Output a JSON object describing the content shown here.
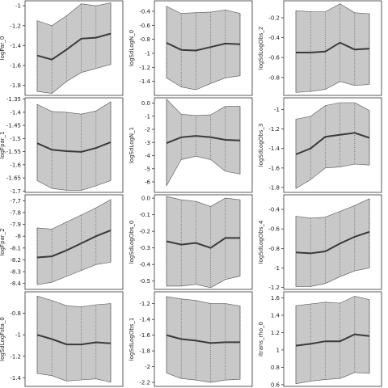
{
  "chart_data": [
    {
      "type": "area",
      "ylabel": "logPar_0",
      "ylim": [
        -1.9,
        -0.95
      ],
      "yticks": [
        -1.0,
        -1.2,
        -1.4,
        -1.6,
        -1.8
      ],
      "x": [
        0,
        1,
        2,
        3,
        4,
        5
      ],
      "mean": [
        -1.5,
        -1.54,
        -1.44,
        -1.33,
        -1.32,
        -1.28
      ],
      "lower": [
        -1.86,
        -1.88,
        -1.76,
        -1.67,
        -1.63,
        -1.59
      ],
      "upper": [
        -1.15,
        -1.2,
        -1.1,
        -0.98,
        -1.0,
        -0.97
      ]
    },
    {
      "type": "area",
      "ylabel": "logSdLogN_0",
      "ylim": [
        -1.6,
        -0.25
      ],
      "yticks": [
        -0.4,
        -0.6,
        -0.8,
        -1.0,
        -1.2,
        -1.4
      ],
      "x": [
        0,
        1,
        2,
        3,
        4,
        5
      ],
      "mean": [
        -0.85,
        -0.95,
        -0.96,
        -0.91,
        -0.86,
        -0.87
      ],
      "lower": [
        -1.35,
        -1.48,
        -1.52,
        -1.43,
        -1.35,
        -1.32
      ],
      "upper": [
        -0.33,
        -0.43,
        -0.42,
        -0.41,
        -0.38,
        -0.43
      ]
    },
    {
      "type": "area",
      "ylabel": "logSdLogObs_2",
      "ylim": [
        -0.98,
        -0.03
      ],
      "yticks": [
        -0.2,
        -0.4,
        -0.6,
        -0.8
      ],
      "x": [
        0,
        1,
        2,
        3,
        4,
        5
      ],
      "mean": [
        -0.55,
        -0.55,
        -0.54,
        -0.45,
        -0.52,
        -0.51
      ],
      "lower": [
        -0.95,
        -0.94,
        -0.92,
        -0.84,
        -0.88,
        -0.87
      ],
      "upper": [
        -0.13,
        -0.14,
        -0.14,
        -0.06,
        -0.15,
        -0.16
      ]
    },
    {
      "type": "area",
      "ylabel": "logFpar_1",
      "ylim": [
        -1.705,
        -1.345
      ],
      "yticks": [
        -1.35,
        -1.4,
        -1.45,
        -1.5,
        -1.55,
        -1.6,
        -1.65,
        -1.7
      ],
      "x": [
        0,
        1,
        2,
        3,
        4,
        5
      ],
      "mean": [
        -1.518,
        -1.543,
        -1.548,
        -1.551,
        -1.536,
        -1.514
      ],
      "lower": [
        -1.66,
        -1.69,
        -1.697,
        -1.697,
        -1.68,
        -1.66
      ],
      "upper": [
        -1.37,
        -1.397,
        -1.4,
        -1.407,
        -1.395,
        -1.36
      ]
    },
    {
      "type": "area",
      "ylabel": "logSdLogN_1",
      "ylim": [
        -6.8,
        0.4
      ],
      "yticks": [
        0,
        -1,
        -2,
        -3,
        -4,
        -5,
        -6
      ],
      "x": [
        0,
        1,
        2,
        3,
        4,
        5
      ],
      "mean": [
        -3.05,
        -2.6,
        -2.5,
        -2.6,
        -2.8,
        -2.85
      ],
      "lower": [
        -6.3,
        -4.3,
        -4.05,
        -4.3,
        -5.2,
        -5.4
      ],
      "upper": [
        0.3,
        -0.85,
        -0.95,
        -0.9,
        -0.25,
        -0.25
      ]
    },
    {
      "type": "area",
      "ylabel": "logSdLogObs_3",
      "ylim": [
        -1.85,
        -0.88
      ],
      "yticks": [
        -1.0,
        -1.2,
        -1.4,
        -1.6,
        -1.8
      ],
      "x": [
        0,
        1,
        2,
        3,
        4,
        5
      ],
      "mean": [
        -1.46,
        -1.4,
        -1.28,
        -1.26,
        -1.24,
        -1.29
      ],
      "lower": [
        -1.81,
        -1.72,
        -1.6,
        -1.59,
        -1.56,
        -1.57
      ],
      "upper": [
        -1.1,
        -1.07,
        -0.96,
        -0.93,
        -0.93,
        -1.01
      ]
    },
    {
      "type": "area",
      "ylabel": "logFpar_2",
      "ylim": [
        -8.45,
        -7.65
      ],
      "yticks": [
        -7.7,
        -7.8,
        -7.9,
        -8.0,
        -8.1,
        -8.2,
        -8.3,
        -8.4
      ],
      "x": [
        0,
        1,
        2,
        3,
        4,
        5
      ],
      "mean": [
        -8.18,
        -8.17,
        -8.12,
        -8.06,
        -8.0,
        -7.95
      ],
      "lower": [
        -8.41,
        -8.39,
        -8.34,
        -8.29,
        -8.24,
        -8.22
      ],
      "upper": [
        -7.93,
        -7.94,
        -7.88,
        -7.82,
        -7.76,
        -7.69
      ]
    },
    {
      "type": "area",
      "ylabel": "logSdLogObs_0",
      "ylim": [
        -0.55,
        0.02
      ],
      "yticks": [
        0.0,
        -0.1,
        -0.2,
        -0.3,
        -0.4,
        -0.5
      ],
      "x": [
        0,
        1,
        2,
        3,
        4,
        5
      ],
      "mean": [
        -0.26,
        -0.28,
        -0.27,
        -0.3,
        -0.24,
        -0.24
      ],
      "lower": [
        -0.53,
        -0.53,
        -0.52,
        -0.54,
        -0.49,
        -0.47
      ],
      "upper": [
        0.01,
        -0.01,
        -0.02,
        -0.05,
        -0.0,
        -0.01
      ]
    },
    {
      "type": "area",
      "ylabel": "logSdLogObs_4",
      "ylim": [
        -1.22,
        -0.25
      ],
      "yticks": [
        -0.4,
        -0.6,
        -0.8,
        -1.0,
        -1.2
      ],
      "x": [
        0,
        1,
        2,
        3,
        4,
        5
      ],
      "mean": [
        -0.84,
        -0.85,
        -0.83,
        -0.75,
        -0.68,
        -0.63
      ],
      "lower": [
        -1.19,
        -1.19,
        -1.16,
        -1.09,
        -1.03,
        -1.0
      ],
      "upper": [
        -0.47,
        -0.49,
        -0.48,
        -0.42,
        -0.36,
        -0.29
      ]
    },
    {
      "type": "area",
      "ylabel": "logSdLogFsta_0",
      "ylim": [
        -1.48,
        -0.6
      ],
      "yticks": [
        -0.8,
        -1.0,
        -1.2,
        -1.4
      ],
      "x": [
        0,
        1,
        2,
        3,
        4,
        5
      ],
      "mean": [
        -1.0,
        -1.04,
        -1.09,
        -1.09,
        -1.07,
        -1.08
      ],
      "lower": [
        -1.36,
        -1.38,
        -1.43,
        -1.42,
        -1.41,
        -1.44
      ],
      "upper": [
        -0.64,
        -0.68,
        -0.73,
        -0.74,
        -0.72,
        -0.71
      ]
    },
    {
      "type": "area",
      "ylabel": "logSdLogObs_1",
      "ylim": [
        -2.25,
        -1.05
      ],
      "yticks": [
        -1.2,
        -1.4,
        -1.6,
        -1.8,
        -2.0,
        -2.2
      ],
      "x": [
        0,
        1,
        2,
        3,
        4,
        5
      ],
      "mean": [
        -1.6,
        -1.65,
        -1.67,
        -1.7,
        -1.69,
        -1.69
      ],
      "lower": [
        -2.08,
        -2.15,
        -2.17,
        -2.2,
        -2.17,
        -2.16
      ],
      "upper": [
        -1.11,
        -1.14,
        -1.16,
        -1.2,
        -1.2,
        -1.23
      ]
    },
    {
      "type": "area",
      "ylabel": "itrans_rho_0",
      "ylim": [
        0.58,
        1.67
      ],
      "yticks": [
        1.6,
        1.4,
        1.2,
        1.0,
        0.8,
        0.6
      ],
      "x": [
        0,
        1,
        2,
        3,
        4,
        5
      ],
      "mean": [
        1.05,
        1.07,
        1.1,
        1.1,
        1.18,
        1.16
      ],
      "lower": [
        0.61,
        0.64,
        0.66,
        0.67,
        0.74,
        0.73
      ],
      "upper": [
        1.51,
        1.53,
        1.55,
        1.54,
        1.62,
        1.58
      ]
    }
  ]
}
